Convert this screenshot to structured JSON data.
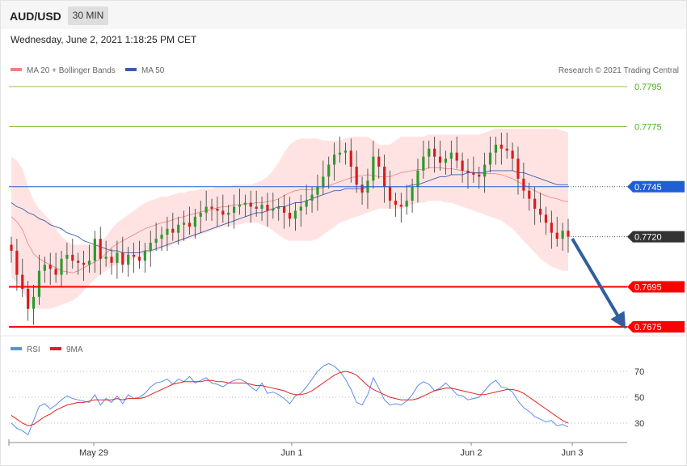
{
  "header": {
    "symbol": "AUD/USD",
    "timeframe": "30 MIN",
    "datetime": "Wednesday, June 2, 2021 1:18:25 PM CET"
  },
  "legend": {
    "ma20": "MA 20 + Bollinger Bands",
    "ma50": "MA 50",
    "credit": "Research © 2021 Trading Central",
    "rsi": "RSI",
    "rsi_ma": "9MA"
  },
  "colors": {
    "up": "#2e9a2e",
    "down": "#d91c1c",
    "bollinger_fill": "#ffd9d9",
    "ma20": "#f08080",
    "ma50": "#3b5fa8",
    "target_line": "#ff0000",
    "resistance_line": "#8bc34a",
    "pivot_line": "#1f5fd6",
    "arrow": "#2f5f9e",
    "rsi": "#5b8def",
    "rsi_ma": "#e02020"
  },
  "chart_data": {
    "type": "candlestick",
    "x_labels": [
      "May 29",
      "Jun 1",
      "Jun 2",
      "Jun 3"
    ],
    "price_levels": [
      {
        "value": "0.7795",
        "kind": "resistance"
      },
      {
        "value": "0.7775",
        "kind": "resistance"
      },
      {
        "value": "0.7745",
        "kind": "pivot"
      },
      {
        "value": "0.7720",
        "kind": "last"
      },
      {
        "value": "0.7695",
        "kind": "target"
      },
      {
        "value": "0.7675",
        "kind": "target"
      }
    ],
    "ylim": [
      0.7675,
      0.7795
    ],
    "closes": [
      0.7713,
      0.7701,
      0.7694,
      0.7684,
      0.769,
      0.7703,
      0.7706,
      0.7704,
      0.7701,
      0.7709,
      0.7711,
      0.7708,
      0.7707,
      0.7706,
      0.7708,
      0.7719,
      0.7709,
      0.771,
      0.7707,
      0.7712,
      0.7706,
      0.7711,
      0.771,
      0.7708,
      0.7713,
      0.7717,
      0.7719,
      0.7721,
      0.7724,
      0.7722,
      0.7726,
      0.7727,
      0.7725,
      0.773,
      0.7732,
      0.7735,
      0.7734,
      0.7733,
      0.7731,
      0.7732,
      0.7735,
      0.7736,
      0.7737,
      0.7735,
      0.7734,
      0.7736,
      0.7733,
      0.7734,
      0.7735,
      0.7732,
      0.7729,
      0.7733,
      0.7735,
      0.7738,
      0.7741,
      0.7745,
      0.775,
      0.7756,
      0.7761,
      0.7762,
      0.7763,
      0.7755,
      0.7746,
      0.7742,
      0.7748,
      0.776,
      0.7755,
      0.7745,
      0.7738,
      0.7736,
      0.7735,
      0.7738,
      0.7745,
      0.7753,
      0.776,
      0.7764,
      0.776,
      0.7757,
      0.7759,
      0.7762,
      0.7758,
      0.7753,
      0.7752,
      0.7751,
      0.775,
      0.7756,
      0.7762,
      0.7766,
      0.7764,
      0.7763,
      0.7759,
      0.7749,
      0.7743,
      0.7739,
      0.7734,
      0.7731,
      0.7727,
      0.7722,
      0.7719,
      0.7723,
      0.772
    ],
    "bb_upper": [
      0.776,
      0.7758,
      0.7754,
      0.7745,
      0.7738,
      0.7734,
      0.7731,
      0.7728,
      0.7724,
      0.772,
      0.7718,
      0.7716,
      0.7716,
      0.7716,
      0.7716,
      0.7716,
      0.7717,
      0.772,
      0.7724,
      0.7727,
      0.7729,
      0.7731,
      0.7733,
      0.7735,
      0.7737,
      0.7738,
      0.7739,
      0.774,
      0.774,
      0.7741,
      0.7742,
      0.7742,
      0.7743,
      0.7743,
      0.7744,
      0.7744,
      0.7744,
      0.7745,
      0.7745,
      0.7745,
      0.7746,
      0.7746,
      0.7746,
      0.7746,
      0.7747,
      0.7748,
      0.775,
      0.7753,
      0.7757,
      0.7762,
      0.7766,
      0.7768,
      0.7769,
      0.7769,
      0.7769,
      0.7769,
      0.7768,
      0.7768,
      0.7768,
      0.7768,
      0.7769,
      0.777,
      0.777,
      0.777,
      0.777,
      0.7768,
      0.7766,
      0.7766,
      0.7766,
      0.7768,
      0.777,
      0.777,
      0.777,
      0.777,
      0.777,
      0.7771,
      0.7771,
      0.7771,
      0.7771,
      0.7771,
      0.7771,
      0.7771,
      0.7771,
      0.7771,
      0.7771,
      0.7772,
      0.7773,
      0.7774,
      0.7774,
      0.7774,
      0.7774,
      0.7774,
      0.7774,
      0.7774,
      0.7774,
      0.7774,
      0.7774,
      0.7774,
      0.7774,
      0.7773,
      0.7772
    ],
    "bb_lower": [
      0.77,
      0.7697,
      0.7693,
      0.7688,
      0.7685,
      0.7684,
      0.7684,
      0.7684,
      0.7685,
      0.7686,
      0.7687,
      0.7688,
      0.769,
      0.7693,
      0.7696,
      0.7699,
      0.7701,
      0.7703,
      0.7705,
      0.7706,
      0.7707,
      0.7708,
      0.7709,
      0.771,
      0.7711,
      0.7712,
      0.7713,
      0.7714,
      0.7715,
      0.7716,
      0.7717,
      0.7718,
      0.7719,
      0.772,
      0.7721,
      0.7722,
      0.7723,
      0.7724,
      0.7725,
      0.7725,
      0.7726,
      0.7726,
      0.7727,
      0.7727,
      0.7727,
      0.7726,
      0.7725,
      0.7723,
      0.7721,
      0.7719,
      0.7718,
      0.7718,
      0.7718,
      0.7718,
      0.7718,
      0.7719,
      0.7721,
      0.7723,
      0.7725,
      0.7727,
      0.7728,
      0.7729,
      0.773,
      0.7731,
      0.7732,
      0.7733,
      0.7734,
      0.7734,
      0.7734,
      0.7734,
      0.7734,
      0.7735,
      0.7736,
      0.7737,
      0.7737,
      0.7738,
      0.7738,
      0.7738,
      0.7737,
      0.7737,
      0.7736,
      0.7735,
      0.7734,
      0.7733,
      0.7732,
      0.7731,
      0.773,
      0.7729,
      0.7728,
      0.7726,
      0.7724,
      0.7721,
      0.7718,
      0.7715,
      0.7712,
      0.7709,
      0.7707,
      0.7705,
      0.7704,
      0.7703,
      0.7703
    ],
    "ma50": [
      0.7737,
      0.7735,
      0.7734,
      0.7732,
      0.7731,
      0.7729,
      0.7728,
      0.7726,
      0.7725,
      0.7724,
      0.7722,
      0.7721,
      0.772,
      0.7718,
      0.7717,
      0.7716,
      0.7715,
      0.7714,
      0.7713,
      0.7713,
      0.7712,
      0.7712,
      0.7712,
      0.7712,
      0.7713,
      0.7713,
      0.7714,
      0.7715,
      0.7716,
      0.7717,
      0.7718,
      0.7719,
      0.772,
      0.7721,
      0.7722,
      0.7723,
      0.7724,
      0.7725,
      0.7726,
      0.7727,
      0.7728,
      0.7729,
      0.773,
      0.7731,
      0.7732,
      0.7732,
      0.7733,
      0.7734,
      0.7735,
      0.7735,
      0.7736,
      0.7737,
      0.7737,
      0.7738,
      0.7739,
      0.774,
      0.7741,
      0.7742,
      0.7743,
      0.7743,
      0.7744,
      0.7744,
      0.7744,
      0.7744,
      0.7745,
      0.7745,
      0.7745,
      0.7745,
      0.7745,
      0.7745,
      0.7745,
      0.7745,
      0.7746,
      0.7746,
      0.7747,
      0.7748,
      0.7749,
      0.775,
      0.775,
      0.7751,
      0.7751,
      0.7751,
      0.7752,
      0.7752,
      0.7752,
      0.7752,
      0.7753,
      0.7753,
      0.7753,
      0.7753,
      0.7753,
      0.7752,
      0.7752,
      0.7751,
      0.775,
      0.7749,
      0.7748,
      0.7747,
      0.7746,
      0.7746,
      0.7746
    ],
    "rsi": {
      "ylim": [
        20,
        80
      ],
      "ticks": [
        "70",
        "50",
        "30"
      ],
      "rsi": [
        30,
        26,
        24,
        21,
        32,
        43,
        45,
        41,
        44,
        48,
        51,
        49,
        48,
        47,
        46,
        52,
        44,
        49,
        46,
        51,
        45,
        52,
        49,
        50,
        53,
        58,
        61,
        62,
        64,
        60,
        64,
        62,
        66,
        61,
        63,
        65,
        61,
        60,
        58,
        61,
        63,
        64,
        62,
        58,
        55,
        61,
        53,
        54,
        52,
        49,
        45,
        51,
        53,
        58,
        64,
        70,
        74,
        76,
        74,
        70,
        64,
        56,
        46,
        44,
        52,
        65,
        57,
        48,
        44,
        45,
        44,
        47,
        52,
        59,
        62,
        60,
        55,
        57,
        61,
        57,
        52,
        51,
        48,
        49,
        50,
        55,
        60,
        63,
        58,
        57,
        54,
        47,
        42,
        39,
        35,
        33,
        31,
        32,
        28,
        29,
        27
      ],
      "ma": [
        36,
        33,
        30,
        28,
        29,
        32,
        35,
        37,
        40,
        42,
        44,
        45,
        46,
        46,
        47,
        48,
        48,
        48,
        48,
        49,
        48,
        49,
        49,
        49,
        50,
        52,
        54,
        56,
        58,
        60,
        61,
        62,
        62,
        62,
        62,
        63,
        63,
        62,
        62,
        61,
        61,
        61,
        61,
        60,
        59,
        59,
        58,
        57,
        56,
        55,
        53,
        52,
        52,
        53,
        55,
        58,
        61,
        64,
        67,
        69,
        70,
        69,
        67,
        63,
        59,
        56,
        54,
        52,
        50,
        49,
        48,
        48,
        48,
        49,
        51,
        53,
        55,
        56,
        57,
        57,
        56,
        55,
        54,
        53,
        52,
        52,
        53,
        54,
        55,
        56,
        56,
        55,
        53,
        50,
        47,
        44,
        41,
        38,
        35,
        32,
        30
      ]
    }
  }
}
